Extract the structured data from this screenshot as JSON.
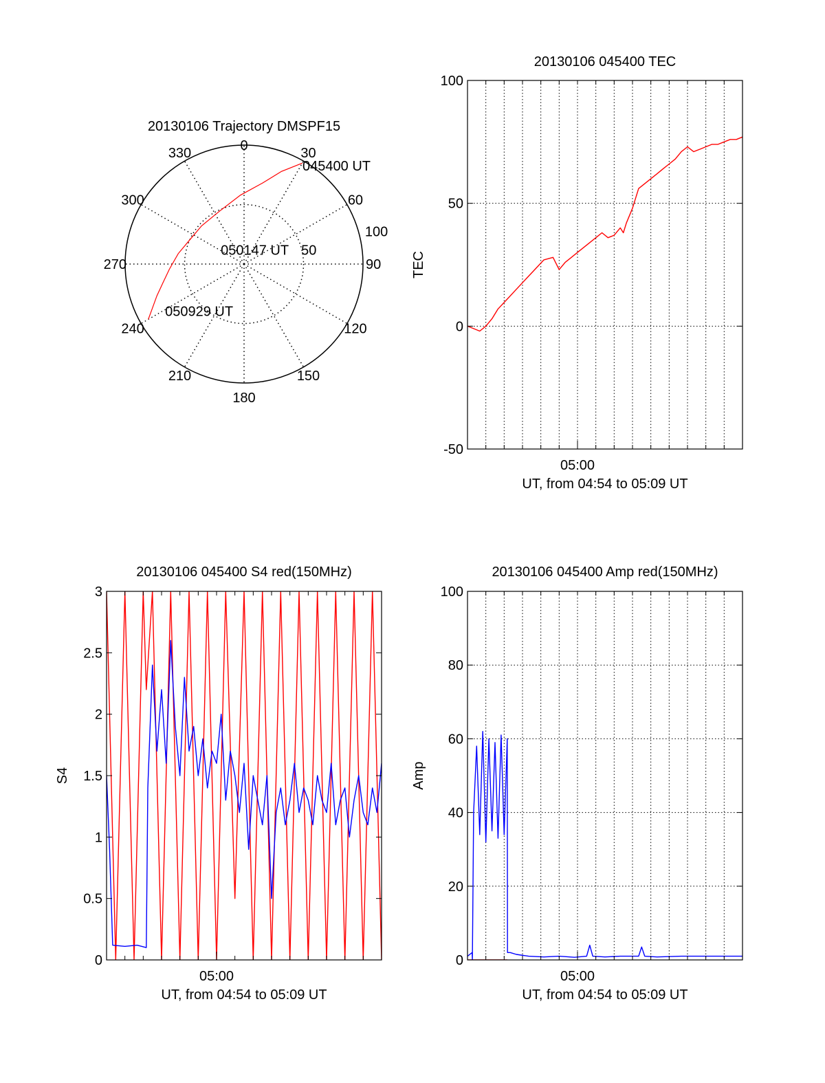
{
  "colors": {
    "red": "#ff0000",
    "blue": "#0000ff",
    "axis": "#000000",
    "grid": "#000000"
  },
  "chart_data": [
    {
      "id": "polar",
      "type": "scatter",
      "subtype": "polar-trajectory",
      "title": "20130106 Trajectory DMSPF15",
      "azimuth_labels": [
        "0",
        "30",
        "60",
        "90",
        "120",
        "150",
        "180",
        "210",
        "240",
        "270",
        "300",
        "330"
      ],
      "azimuths": [
        0,
        30,
        60,
        90,
        120,
        150,
        180,
        210,
        240,
        270,
        300,
        330
      ],
      "radial_labels": [
        "50",
        "100"
      ],
      "radial_values": [
        50,
        100
      ],
      "radial_max": 100,
      "annotations": [
        {
          "text": "045400 UT",
          "az": 30,
          "r": 96
        },
        {
          "text": "050147 UT",
          "az": 300,
          "r": 48
        },
        {
          "text": "050929 UT",
          "az": 240,
          "r": 78
        }
      ],
      "series": [
        {
          "color": "#ff0000",
          "points": [
            [
              30,
              98
            ],
            [
              22,
              84
            ],
            [
              13,
              70
            ],
            [
              357,
              58
            ],
            [
              335,
              49
            ],
            [
              312,
              48
            ],
            [
              294,
              50
            ],
            [
              279,
              56
            ],
            [
              266,
              63
            ],
            [
              257,
              70
            ],
            [
              250,
              78
            ],
            [
              244,
              86
            ],
            [
              240,
              93
            ]
          ]
        }
      ]
    },
    {
      "id": "tec",
      "type": "line",
      "title": "20130106 045400 TEC",
      "xlabel": "UT, from 04:54 to 05:09 UT",
      "ylabel": "TEC",
      "xlim": [
        0,
        900
      ],
      "ylim": [
        -50,
        100
      ],
      "yticks": [
        -50,
        0,
        50,
        100
      ],
      "ytick_labels": [
        "-50",
        "0",
        "50",
        "100"
      ],
      "xticks": [
        360
      ],
      "xtick_labels": [
        "05:00"
      ],
      "grid": true,
      "series": [
        {
          "color": "#ff0000",
          "x": [
            0,
            20,
            40,
            60,
            80,
            100,
            130,
            160,
            190,
            220,
            250,
            280,
            300,
            320,
            340,
            360,
            390,
            420,
            440,
            460,
            480,
            500,
            510,
            520,
            540,
            560,
            580,
            600,
            620,
            640,
            660,
            680,
            700,
            720,
            740,
            760,
            780,
            800,
            820,
            840,
            860,
            880,
            900
          ],
          "y": [
            0,
            -1,
            -2,
            0,
            3,
            7,
            11,
            15,
            19,
            23,
            27,
            28,
            23,
            26,
            28,
            30,
            33,
            36,
            38,
            36,
            37,
            40,
            38,
            42,
            48,
            56,
            58,
            60,
            62,
            64,
            66,
            68,
            71,
            73,
            71,
            72,
            73,
            74,
            74,
            75,
            76,
            76,
            77
          ]
        }
      ]
    },
    {
      "id": "s4",
      "type": "line",
      "title": "20130106 045400 S4 red(150MHz)",
      "xlabel": "UT, from 04:54 to 05:09 UT",
      "ylabel": "S4",
      "xlim": [
        0,
        900
      ],
      "ylim": [
        0,
        3
      ],
      "yticks": [
        0,
        0.5,
        1,
        1.5,
        2,
        2.5,
        3
      ],
      "ytick_labels": [
        "0",
        "0.5",
        "1",
        "1.5",
        "2",
        "2.5",
        "3"
      ],
      "xticks": [
        360
      ],
      "xtick_labels": [
        "05:00"
      ],
      "grid": false,
      "series": [
        {
          "color": "#ff0000",
          "x": [
            0,
            30,
            60,
            90,
            120,
            130,
            150,
            180,
            210,
            240,
            270,
            300,
            330,
            360,
            390,
            420,
            450,
            480,
            510,
            540,
            570,
            600,
            630,
            660,
            690,
            720,
            750,
            780,
            810,
            840,
            870,
            900
          ],
          "y": [
            3,
            0,
            3,
            0,
            3,
            2.2,
            3,
            0,
            3,
            0,
            3,
            0,
            3,
            0,
            3,
            0.5,
            3,
            0,
            3,
            0,
            3,
            0,
            3,
            0,
            3,
            0,
            3,
            0,
            3,
            0,
            3,
            0
          ]
        },
        {
          "color": "#0000ff",
          "x": [
            0,
            10,
            20,
            60,
            100,
            130,
            135,
            150,
            165,
            180,
            195,
            210,
            225,
            240,
            255,
            270,
            285,
            300,
            315,
            330,
            345,
            360,
            375,
            390,
            405,
            420,
            435,
            450,
            465,
            480,
            495,
            510,
            525,
            540,
            555,
            570,
            585,
            600,
            615,
            630,
            645,
            660,
            675,
            690,
            705,
            720,
            735,
            750,
            765,
            780,
            795,
            810,
            825,
            840,
            855,
            870,
            885,
            900
          ],
          "y": [
            1.5,
            0.9,
            0.12,
            0.11,
            0.12,
            0.1,
            1.4,
            2.4,
            1.7,
            2.2,
            1.6,
            2.6,
            1.9,
            1.5,
            2.3,
            1.7,
            1.9,
            1.5,
            1.8,
            1.4,
            1.7,
            1.6,
            2.0,
            1.3,
            1.7,
            1.5,
            1.2,
            1.6,
            0.9,
            1.5,
            1.3,
            1.1,
            1.5,
            0.5,
            1.2,
            1.4,
            1.1,
            1.3,
            1.6,
            1.2,
            1.4,
            1.3,
            1.1,
            1.5,
            1.3,
            1.2,
            1.6,
            1.1,
            1.3,
            1.4,
            1.0,
            1.3,
            1.5,
            1.2,
            1.1,
            1.4,
            1.2,
            1.6
          ]
        }
      ]
    },
    {
      "id": "amp",
      "type": "line",
      "title": "20130106 045400 Amp red(150MHz)",
      "xlabel": "UT, from 04:54 to 05:09 UT",
      "ylabel": "Amp",
      "xlim": [
        0,
        900
      ],
      "ylim": [
        0,
        100
      ],
      "yticks": [
        0,
        20,
        40,
        60,
        80,
        100
      ],
      "ytick_labels": [
        "0",
        "20",
        "40",
        "60",
        "80",
        "100"
      ],
      "xticks": [
        360
      ],
      "xtick_labels": [
        "05:00"
      ],
      "grid": true,
      "series": [
        {
          "color": "#ff0000",
          "x": [
            0,
            130
          ],
          "y": [
            0,
            0
          ]
        },
        {
          "color": "#0000ff",
          "x": [
            0,
            15,
            16,
            20,
            30,
            40,
            50,
            60,
            70,
            80,
            90,
            100,
            110,
            120,
            130,
            131,
            140,
            160,
            200,
            250,
            300,
            350,
            390,
            400,
            410,
            450,
            500,
            560,
            570,
            580,
            620,
            700,
            800,
            900
          ],
          "y": [
            1,
            2,
            0,
            40,
            58,
            34,
            62,
            32,
            60,
            35,
            59,
            33,
            61,
            34,
            60,
            2,
            2,
            1.5,
            1,
            0.8,
            1,
            0.7,
            1,
            4,
            1,
            0.8,
            1,
            1,
            3.5,
            1,
            0.8,
            1,
            1,
            1
          ]
        }
      ]
    }
  ]
}
